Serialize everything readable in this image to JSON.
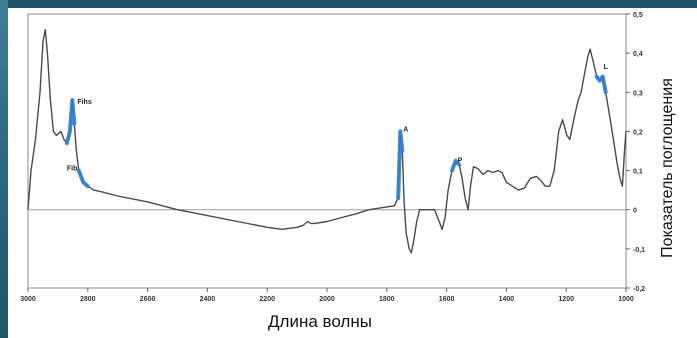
{
  "chart_data": {
    "type": "line",
    "xlabel": "Длина волны",
    "ylabel": "Показатель поглощения",
    "xlim": [
      3000,
      1000
    ],
    "ylim": [
      -0.2,
      0.5
    ],
    "x_ticks": [
      3000,
      2800,
      2600,
      2400,
      2200,
      2000,
      1800,
      1600,
      1400,
      1200,
      1000
    ],
    "x_tick_labels": [
      "3000",
      "2800",
      "2600",
      "2400",
      "2200",
      "2000",
      "1800",
      "1600",
      "1400",
      "1200",
      "1000"
    ],
    "y_ticks": [
      -0.2,
      -0.1,
      0,
      0.1,
      0.2,
      0.3,
      0.4,
      0.5
    ],
    "y_tick_labels": [
      "-0,2",
      "-0,1",
      "0",
      "0,1",
      "0,2",
      "0,3",
      "0,4",
      "0,5"
    ],
    "grid": false,
    "series": [
      {
        "color": "#4a4a4a",
        "points": [
          [
            3000,
            0.0
          ],
          [
            2990,
            0.1
          ],
          [
            2975,
            0.18
          ],
          [
            2960,
            0.3
          ],
          [
            2950,
            0.43
          ],
          [
            2942,
            0.46
          ],
          [
            2935,
            0.4
          ],
          [
            2925,
            0.28
          ],
          [
            2915,
            0.2
          ],
          [
            2905,
            0.19
          ],
          [
            2890,
            0.2
          ],
          [
            2880,
            0.18
          ],
          [
            2870,
            0.17
          ],
          [
            2860,
            0.2
          ],
          [
            2852,
            0.28
          ],
          [
            2845,
            0.22
          ],
          [
            2838,
            0.15
          ],
          [
            2830,
            0.1
          ],
          [
            2815,
            0.07
          ],
          [
            2800,
            0.06
          ],
          [
            2780,
            0.05
          ],
          [
            2750,
            0.045
          ],
          [
            2700,
            0.035
          ],
          [
            2600,
            0.02
          ],
          [
            2500,
            0.0
          ],
          [
            2400,
            -0.015
          ],
          [
            2300,
            -0.03
          ],
          [
            2200,
            -0.045
          ],
          [
            2150,
            -0.05
          ],
          [
            2100,
            -0.045
          ],
          [
            2080,
            -0.04
          ],
          [
            2065,
            -0.03
          ],
          [
            2055,
            -0.035
          ],
          [
            2040,
            -0.035
          ],
          [
            2000,
            -0.03
          ],
          [
            1950,
            -0.02
          ],
          [
            1900,
            -0.01
          ],
          [
            1860,
            0.0
          ],
          [
            1775,
            0.01
          ],
          [
            1762,
            0.03
          ],
          [
            1755,
            0.2
          ],
          [
            1748,
            0.15
          ],
          [
            1742,
            0.02
          ],
          [
            1735,
            -0.06
          ],
          [
            1725,
            -0.1
          ],
          [
            1718,
            -0.11
          ],
          [
            1710,
            -0.08
          ],
          [
            1700,
            -0.03
          ],
          [
            1690,
            0.0
          ],
          [
            1640,
            0.0
          ],
          [
            1615,
            -0.05
          ],
          [
            1605,
            -0.02
          ],
          [
            1595,
            0.05
          ],
          [
            1582,
            0.1
          ],
          [
            1570,
            0.125
          ],
          [
            1558,
            0.115
          ],
          [
            1548,
            0.08
          ],
          [
            1538,
            0.03
          ],
          [
            1528,
            0.0
          ],
          [
            1520,
            0.06
          ],
          [
            1510,
            0.11
          ],
          [
            1495,
            0.105
          ],
          [
            1478,
            0.09
          ],
          [
            1462,
            0.1
          ],
          [
            1445,
            0.095
          ],
          [
            1428,
            0.1
          ],
          [
            1415,
            0.095
          ],
          [
            1400,
            0.07
          ],
          [
            1380,
            0.06
          ],
          [
            1360,
            0.05
          ],
          [
            1340,
            0.055
          ],
          [
            1320,
            0.08
          ],
          [
            1300,
            0.085
          ],
          [
            1285,
            0.075
          ],
          [
            1270,
            0.06
          ],
          [
            1255,
            0.06
          ],
          [
            1240,
            0.1
          ],
          [
            1225,
            0.2
          ],
          [
            1212,
            0.23
          ],
          [
            1198,
            0.19
          ],
          [
            1188,
            0.18
          ],
          [
            1172,
            0.24
          ],
          [
            1160,
            0.28
          ],
          [
            1150,
            0.3
          ],
          [
            1138,
            0.35
          ],
          [
            1128,
            0.39
          ],
          [
            1120,
            0.41
          ],
          [
            1110,
            0.38
          ],
          [
            1098,
            0.34
          ],
          [
            1088,
            0.33
          ],
          [
            1078,
            0.34
          ],
          [
            1068,
            0.3
          ],
          [
            1055,
            0.24
          ],
          [
            1042,
            0.18
          ],
          [
            1030,
            0.12
          ],
          [
            1020,
            0.08
          ],
          [
            1012,
            0.06
          ],
          [
            1005,
            0.15
          ],
          [
            1000,
            0.2
          ]
        ]
      }
    ],
    "highlights": [
      {
        "color": "#2f7fd4",
        "points": [
          [
            2870,
            0.17
          ],
          [
            2860,
            0.2
          ],
          [
            2852,
            0.28
          ],
          [
            2845,
            0.22
          ]
        ]
      },
      {
        "color": "#2f7fd4",
        "points": [
          [
            2830,
            0.1
          ],
          [
            2815,
            0.07
          ],
          [
            2800,
            0.06
          ]
        ]
      },
      {
        "color": "#2f7fd4",
        "points": [
          [
            1762,
            0.03
          ],
          [
            1755,
            0.2
          ],
          [
            1748,
            0.15
          ]
        ]
      },
      {
        "color": "#2f7fd4",
        "points": [
          [
            1582,
            0.1
          ],
          [
            1570,
            0.125
          ],
          [
            1558,
            0.115
          ]
        ]
      },
      {
        "color": "#2f7fd4",
        "points": [
          [
            1098,
            0.34
          ],
          [
            1088,
            0.33
          ],
          [
            1078,
            0.34
          ],
          [
            1068,
            0.3
          ]
        ]
      }
    ],
    "annotations": [
      {
        "text": "Fihs",
        "x": 2835,
        "y": 0.27
      },
      {
        "text": "Fib",
        "x": 2870,
        "y": 0.1
      },
      {
        "text": "A",
        "x": 1745,
        "y": 0.2
      },
      {
        "text": "P",
        "x": 1563,
        "y": 0.12
      },
      {
        "text": "L",
        "x": 1075,
        "y": 0.36
      }
    ]
  }
}
